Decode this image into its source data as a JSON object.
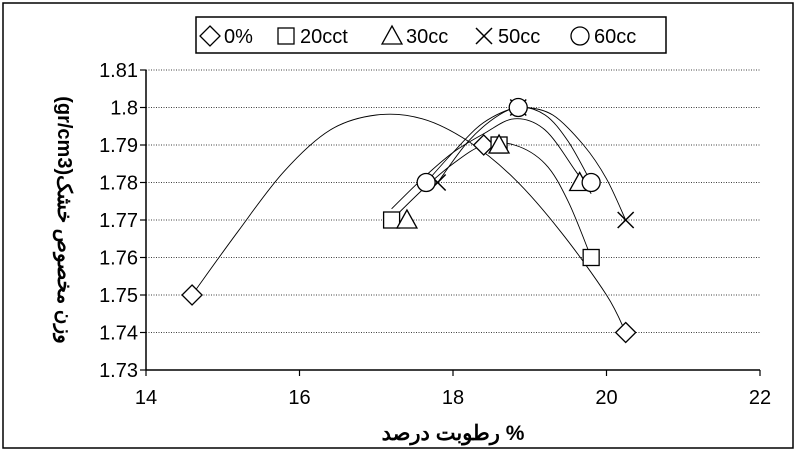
{
  "chart_data": {
    "type": "scatter",
    "title": "",
    "xlabel": "رطوبت درصد %",
    "ylabel": "(gr/cm3)وزن مخصوص خشک",
    "xlim": [
      14,
      22
    ],
    "ylim": [
      1.73,
      1.81
    ],
    "x_ticks": [
      "14",
      "16",
      "18",
      "20",
      "22"
    ],
    "y_ticks": [
      "1.73",
      "1.74",
      "1.75",
      "1.76",
      "1.77",
      "1.78",
      "1.79",
      "1.8",
      "1.81"
    ],
    "grid": "horizontal",
    "legend_position": "top",
    "series": [
      {
        "name": "0%",
        "marker": "diamond",
        "points": [
          [
            14.6,
            1.75
          ],
          [
            18.4,
            1.79
          ],
          [
            20.25,
            1.74
          ]
        ],
        "curve": [
          [
            14.6,
            1.75
          ],
          [
            15.2,
            1.767
          ],
          [
            15.8,
            1.783
          ],
          [
            16.4,
            1.794
          ],
          [
            17.0,
            1.798
          ],
          [
            17.6,
            1.797
          ],
          [
            18.2,
            1.791
          ],
          [
            18.8,
            1.781
          ],
          [
            19.4,
            1.767
          ],
          [
            20.0,
            1.75
          ],
          [
            20.25,
            1.74
          ]
        ]
      },
      {
        "name": "20cct",
        "marker": "square",
        "points": [
          [
            17.2,
            1.77
          ],
          [
            18.6,
            1.79
          ],
          [
            19.8,
            1.76
          ]
        ],
        "curve": [
          [
            17.2,
            1.77
          ],
          [
            17.6,
            1.778
          ],
          [
            18.0,
            1.785
          ],
          [
            18.4,
            1.79
          ],
          [
            18.8,
            1.79
          ],
          [
            19.2,
            1.785
          ],
          [
            19.5,
            1.775
          ],
          [
            19.8,
            1.76
          ]
        ]
      },
      {
        "name": "30cc",
        "marker": "triangle",
        "points": [
          [
            17.4,
            1.77
          ],
          [
            18.6,
            1.79
          ],
          [
            19.65,
            1.78
          ]
        ],
        "curve": [
          [
            17.2,
            1.773
          ],
          [
            17.6,
            1.781
          ],
          [
            18.0,
            1.788
          ],
          [
            18.4,
            1.793
          ],
          [
            18.8,
            1.797
          ],
          [
            19.2,
            1.794
          ],
          [
            19.6,
            1.783
          ],
          [
            19.8,
            1.777
          ]
        ]
      },
      {
        "name": "50cc",
        "marker": "x",
        "points": [
          [
            17.8,
            1.78
          ],
          [
            18.85,
            1.8
          ],
          [
            20.25,
            1.77
          ]
        ],
        "curve": [
          [
            17.8,
            1.78
          ],
          [
            18.2,
            1.791
          ],
          [
            18.6,
            1.798
          ],
          [
            18.9,
            1.8
          ],
          [
            19.3,
            1.798
          ],
          [
            19.7,
            1.79
          ],
          [
            20.0,
            1.781
          ],
          [
            20.25,
            1.77
          ]
        ]
      },
      {
        "name": "60cc",
        "marker": "circle",
        "points": [
          [
            17.65,
            1.78
          ],
          [
            18.85,
            1.8
          ],
          [
            19.8,
            1.78
          ]
        ],
        "curve": [
          [
            17.65,
            1.78
          ],
          [
            18.0,
            1.788
          ],
          [
            18.4,
            1.796
          ],
          [
            18.85,
            1.8
          ],
          [
            19.2,
            1.798
          ],
          [
            19.5,
            1.791
          ],
          [
            19.8,
            1.78
          ]
        ]
      }
    ]
  }
}
